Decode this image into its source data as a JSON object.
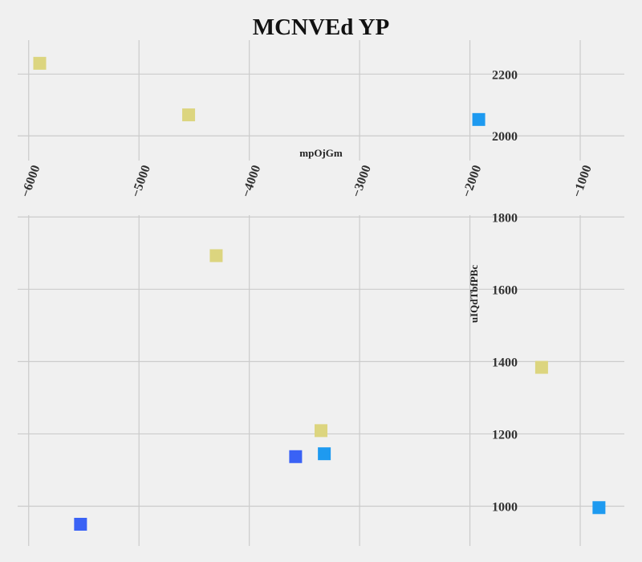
{
  "chart_data": {
    "type": "scatter",
    "title": "MCNVEd YP",
    "xlabel": "mpOjGm",
    "ylabel": "uIQdTbfPBc",
    "x_ticks": [
      -6000,
      -5000,
      -4000,
      -3000,
      -2000,
      -1000
    ],
    "x_tick_labels": [
      "−6000",
      "−5000",
      "−4000",
      "−3000",
      "−2000",
      "−1000"
    ],
    "xlim": [
      -6100,
      -600
    ],
    "grid": true,
    "panels": [
      {
        "ylim": [
          1920,
          2310
        ],
        "y_ticks": [
          2000,
          2200
        ],
        "y_tick_labels": [
          "2000",
          "2200"
        ]
      },
      {
        "ylim": [
          890,
          1805
        ],
        "y_ticks": [
          1000,
          1200,
          1400,
          1600,
          1800
        ],
        "y_tick_labels": [
          "1000",
          "1200",
          "1400",
          "1600",
          "1800"
        ]
      }
    ],
    "series": [
      {
        "color": "#dcd57f",
        "points": [
          {
            "panel": 0,
            "x": -5900,
            "y": 2235
          },
          {
            "panel": 0,
            "x": -4550,
            "y": 2068
          },
          {
            "panel": 1,
            "x": -4300,
            "y": 1693
          },
          {
            "panel": 1,
            "x": -3350,
            "y": 1209
          },
          {
            "panel": 1,
            "x": -1350,
            "y": 1384
          }
        ]
      },
      {
        "color": "#1e9af0",
        "points": [
          {
            "panel": 0,
            "x": -1920,
            "y": 2053
          },
          {
            "panel": 1,
            "x": -3320,
            "y": 1145
          },
          {
            "panel": 1,
            "x": -830,
            "y": 996
          }
        ]
      },
      {
        "color": "#3a62f5",
        "points": [
          {
            "panel": 1,
            "x": -5530,
            "y": 950
          },
          {
            "panel": 1,
            "x": -3580,
            "y": 1137
          }
        ]
      }
    ]
  }
}
